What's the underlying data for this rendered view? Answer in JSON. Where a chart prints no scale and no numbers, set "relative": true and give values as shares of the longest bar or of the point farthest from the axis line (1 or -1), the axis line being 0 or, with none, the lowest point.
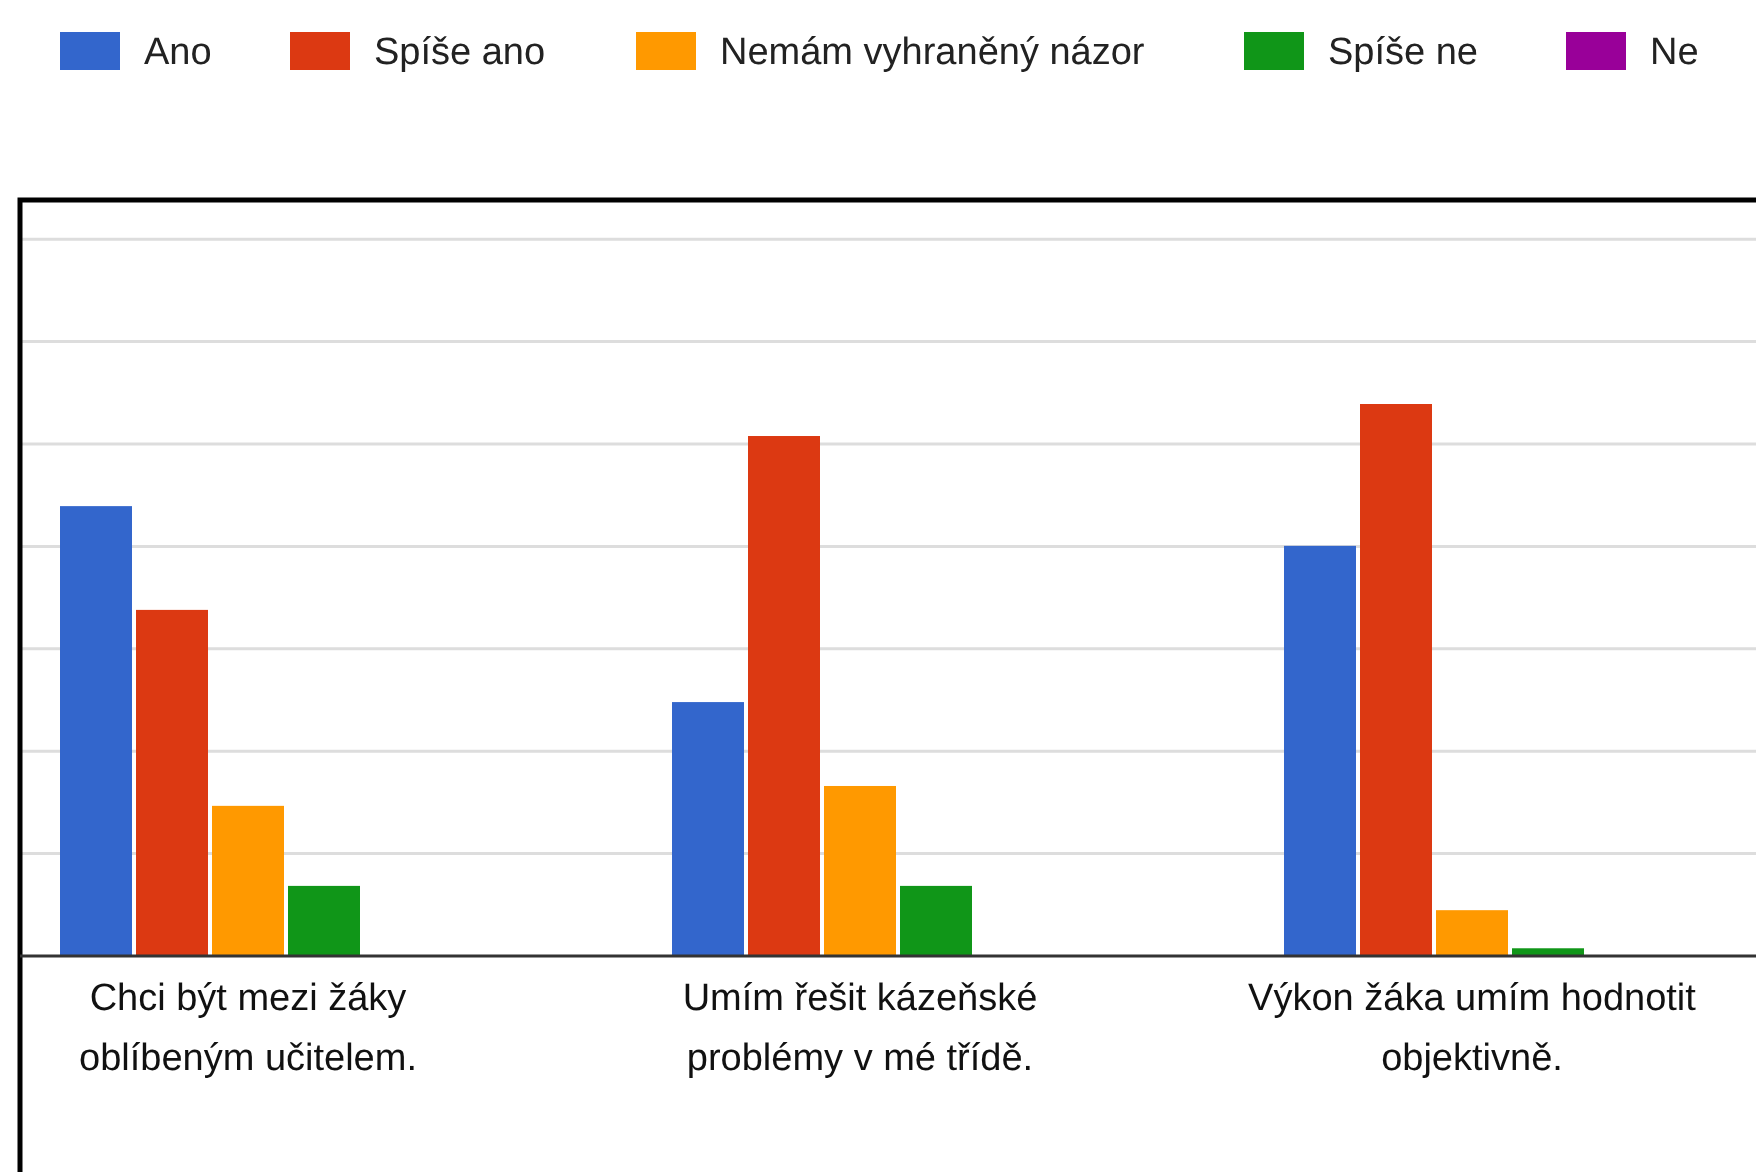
{
  "chart_data": {
    "type": "bar",
    "relative": true,
    "grid": true,
    "legend": "top",
    "categories": [
      "Chci být mezi žáky oblíbeným učitelem.",
      "Umím řešit kázeňské problémy v mé třídě.",
      "Výkon žáka umím hodnotit objektivně."
    ],
    "series": [
      {
        "name": "Ano",
        "color": "#3366cc",
        "values": [
          0.815,
          0.46,
          0.743
        ]
      },
      {
        "name": "Spíše ano",
        "color": "#dc3912",
        "values": [
          0.627,
          0.942,
          1
        ]
      },
      {
        "name": "Nemám vyhraněný názor",
        "color": "#ff9900",
        "values": [
          0.272,
          0.308,
          0.083
        ]
      },
      {
        "name": "Spíše ne",
        "color": "#109618",
        "values": [
          0.127,
          0.127,
          0.014
        ]
      },
      {
        "name": "Ne",
        "color": "#990099",
        "values": [
          0,
          0,
          0
        ]
      }
    ]
  }
}
